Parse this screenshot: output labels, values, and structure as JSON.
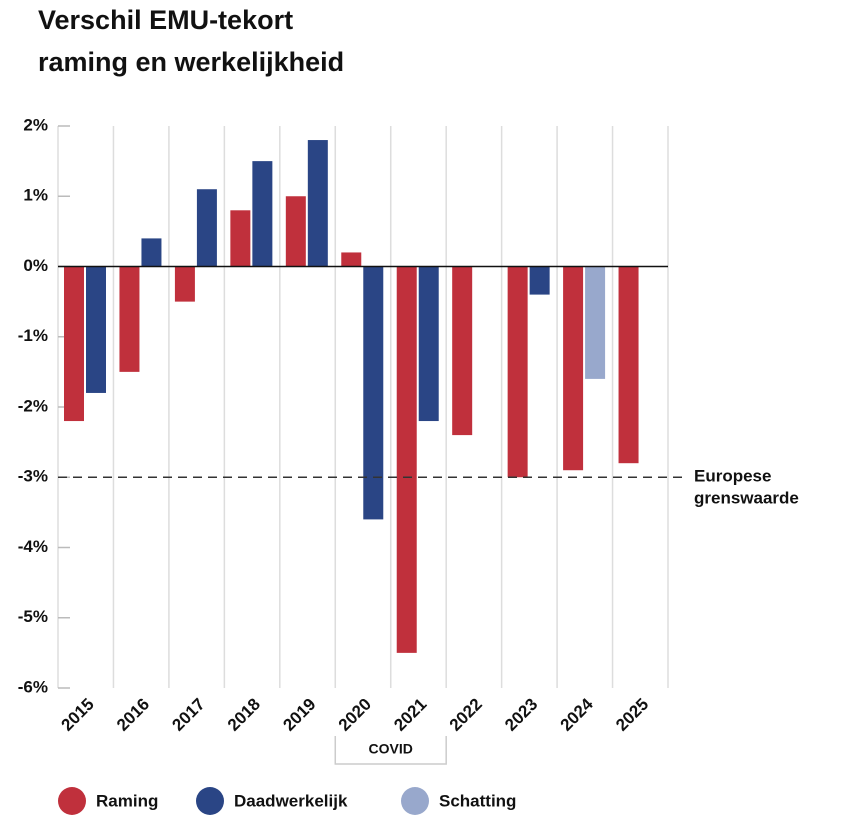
{
  "chart_data": {
    "type": "bar",
    "title": [
      "Verschil EMU-tekort",
      "raming en werkelijkheid"
    ],
    "categories": [
      "2015",
      "2016",
      "2017",
      "2018",
      "2019",
      "2020",
      "2021",
      "2022",
      "2023",
      "2024",
      "2025"
    ],
    "series": [
      {
        "name": "Raming",
        "color": "#c0303c",
        "values": [
          -2.2,
          -1.5,
          -0.5,
          0.8,
          1.0,
          0.2,
          -5.5,
          -2.4,
          -3.0,
          -2.9,
          -2.8
        ]
      },
      {
        "name": "Daadwerkelijk",
        "color": "#2a4585",
        "values": [
          -1.8,
          0.4,
          1.1,
          1.5,
          1.8,
          -3.6,
          -2.2,
          0,
          -0.4,
          null,
          null
        ]
      },
      {
        "name": "Schatting",
        "color": "#98a8cc",
        "values": [
          null,
          null,
          null,
          null,
          null,
          null,
          null,
          null,
          null,
          -1.6,
          null
        ]
      }
    ],
    "ylim": [
      -6,
      2
    ],
    "yticks": [
      {
        "value": 2,
        "label": "2%"
      },
      {
        "value": 1,
        "label": "1%"
      },
      {
        "value": 0,
        "label": "0%"
      },
      {
        "value": -1,
        "label": "-1%"
      },
      {
        "value": -2,
        "label": "-2%"
      },
      {
        "value": -3,
        "label": "-3%"
      },
      {
        "value": -4,
        "label": "-4%"
      },
      {
        "value": -5,
        "label": "-5%"
      },
      {
        "value": -6,
        "label": "-6%"
      }
    ],
    "grid": true,
    "reference_line": {
      "value": -3,
      "label": [
        "Europese",
        "grenswaarde"
      ]
    },
    "annotation": {
      "text": "COVID",
      "from": 5,
      "to": 6
    }
  }
}
